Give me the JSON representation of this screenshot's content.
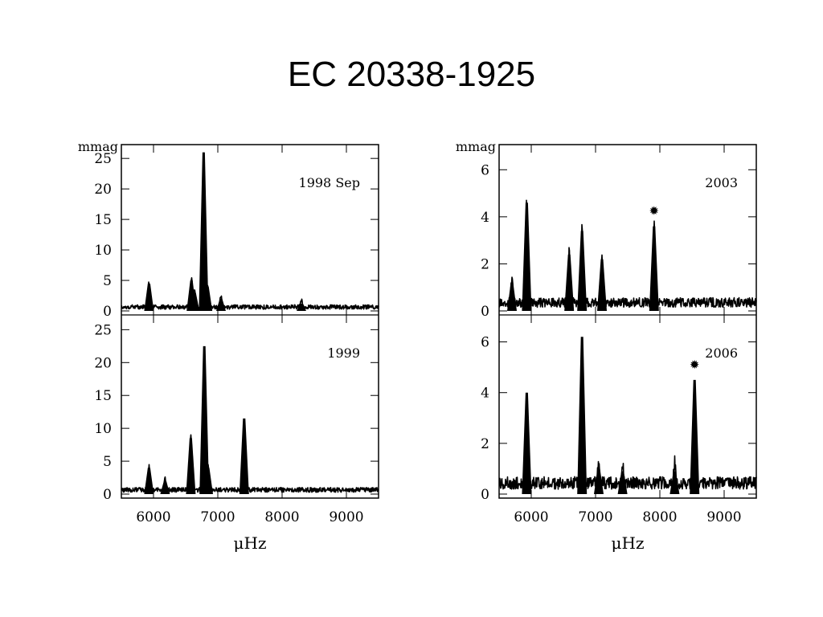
{
  "slide": {
    "title": "EC 20338-1925"
  },
  "chart_data": [
    {
      "type": "line",
      "title": "",
      "ylabel": "mmag",
      "xlabel": "μHz",
      "xlim": [
        5500,
        9500
      ],
      "x_ticks": [
        "6000",
        "7000",
        "8000",
        "9000"
      ],
      "panels": [
        {
          "label": "1998 Sep",
          "ylim": [
            0,
            27
          ],
          "y_ticks": [
            "0",
            "5",
            "10",
            "15",
            "20",
            "25"
          ],
          "noise": 0.8,
          "peaks": [
            {
              "x": 5930,
              "y": 4.5
            },
            {
              "x": 6590,
              "y": 5.0
            },
            {
              "x": 6640,
              "y": 3.0
            },
            {
              "x": 6780,
              "y": 26.0
            },
            {
              "x": 6840,
              "y": 4.0
            },
            {
              "x": 7050,
              "y": 2.0
            },
            {
              "x": 8300,
              "y": 1.2
            }
          ]
        },
        {
          "label": "1999",
          "ylim": [
            0,
            27
          ],
          "y_ticks": [
            "0",
            "5",
            "10",
            "15",
            "20",
            "25"
          ],
          "noise": 0.8,
          "peaks": [
            {
              "x": 5930,
              "y": 4.0
            },
            {
              "x": 6180,
              "y": 2.0
            },
            {
              "x": 6580,
              "y": 8.5
            },
            {
              "x": 6790,
              "y": 22.5
            },
            {
              "x": 6850,
              "y": 4.0
            },
            {
              "x": 7410,
              "y": 11.5
            }
          ]
        }
      ]
    },
    {
      "type": "line",
      "title": "",
      "ylabel": "mmag",
      "xlabel": "μHz",
      "xlim": [
        5500,
        9500
      ],
      "x_ticks": [
        "6000",
        "7000",
        "8000",
        "9000"
      ],
      "panels": [
        {
          "label": "2003",
          "ylim": [
            0,
            7
          ],
          "y_ticks": [
            "0",
            "2",
            "4",
            "6"
          ],
          "noise": 0.45,
          "marker_x": 7910,
          "peaks": [
            {
              "x": 5700,
              "y": 1.2
            },
            {
              "x": 5930,
              "y": 4.6
            },
            {
              "x": 6590,
              "y": 2.4
            },
            {
              "x": 6790,
              "y": 3.4
            },
            {
              "x": 7100,
              "y": 2.2
            },
            {
              "x": 7910,
              "y": 3.6
            }
          ]
        },
        {
          "label": "2006",
          "ylim": [
            0,
            7
          ],
          "y_ticks": [
            "0",
            "2",
            "4",
            "6"
          ],
          "noise": 0.55,
          "marker_x": 8540,
          "peaks": [
            {
              "x": 5930,
              "y": 4.0
            },
            {
              "x": 6790,
              "y": 6.2
            },
            {
              "x": 7050,
              "y": 1.0
            },
            {
              "x": 7420,
              "y": 0.9
            },
            {
              "x": 8230,
              "y": 0.9
            },
            {
              "x": 8540,
              "y": 4.5
            }
          ]
        }
      ]
    }
  ]
}
